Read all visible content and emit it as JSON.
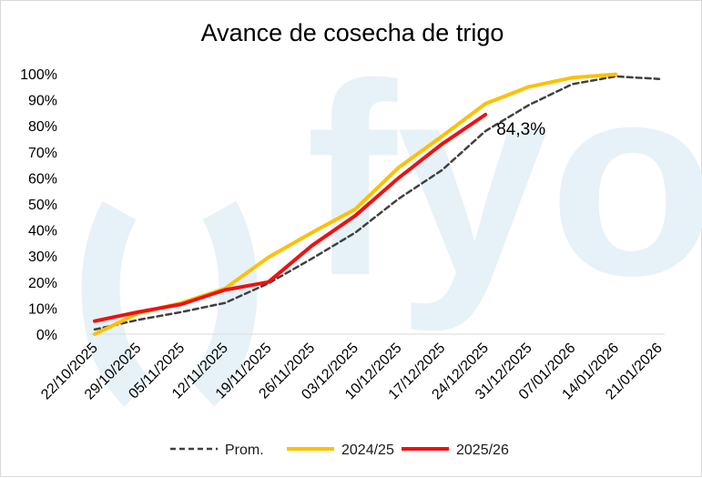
{
  "chart_data": {
    "type": "line",
    "title": "Avance de cosecha de trigo",
    "xlabel": "",
    "ylabel": "",
    "ylim": [
      0,
      100
    ],
    "y_ticks": [
      "0%",
      "10%",
      "20%",
      "30%",
      "40%",
      "50%",
      "60%",
      "70%",
      "80%",
      "90%",
      "100%"
    ],
    "categories": [
      "22/10/2025",
      "29/10/2025",
      "05/11/2025",
      "12/11/2025",
      "19/11/2025",
      "26/11/2025",
      "03/12/2025",
      "10/12/2025",
      "17/12/2025",
      "24/12/2025",
      "31/12/2025",
      "07/01/2026",
      "14/01/2026",
      "21/01/2026"
    ],
    "series": [
      {
        "name": "Prom.",
        "color": "#404040",
        "dash": true,
        "values": [
          1.8,
          5.5,
          8.5,
          12,
          19.5,
          29,
          39,
          52,
          63,
          78,
          88,
          96,
          99,
          98
        ]
      },
      {
        "name": "2024/25",
        "color": "#FFC000",
        "dash": false,
        "values": [
          0,
          8,
          12,
          17.5,
          29.5,
          39,
          48,
          64,
          76,
          88.5,
          95,
          98.5,
          99.8,
          null
        ]
      },
      {
        "name": "2025/26",
        "color": "#EE1111",
        "dash": false,
        "values": [
          5,
          8.5,
          11.5,
          17,
          20,
          34,
          45.5,
          60,
          73,
          84.3,
          null,
          null,
          null,
          null
        ]
      }
    ],
    "annotations": [
      {
        "text": "84,3%",
        "series": "2025/26",
        "category": "24/12/2025"
      }
    ],
    "grid": false,
    "legend_position": "bottom"
  },
  "watermark": {
    "text": "fyo",
    "color": "#e6f2f7"
  }
}
